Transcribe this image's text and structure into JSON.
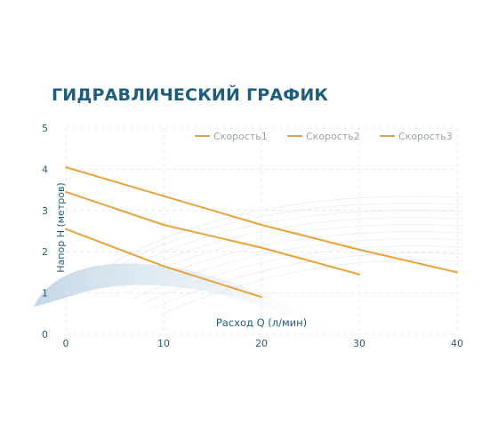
{
  "chart_data": {
    "type": "line",
    "title": "ГИДРАВЛИЧЕСКИЙ ГРАФИК",
    "xlabel": "Расход Q (л/мин)",
    "ylabel": "Напор Н (метров)",
    "xlim": [
      0,
      40
    ],
    "ylim": [
      0,
      5
    ],
    "x_ticks": [
      "0",
      "10",
      "20",
      "30",
      "40"
    ],
    "y_ticks": [
      "0",
      "1",
      "2",
      "3",
      "4",
      "5"
    ],
    "grid": "dashed",
    "legend": "top-right",
    "series": [
      {
        "name": "Скорость1",
        "color": "#e8a33a",
        "points": [
          [
            0,
            2.55
          ],
          [
            10,
            1.65
          ],
          [
            20,
            0.9
          ]
        ]
      },
      {
        "name": "Скорость2",
        "color": "#e8a33a",
        "points": [
          [
            0,
            3.45
          ],
          [
            10,
            2.65
          ],
          [
            20,
            2.1
          ],
          [
            30,
            1.45
          ]
        ]
      },
      {
        "name": "Скорость3",
        "color": "#e8a33a",
        "points": [
          [
            0,
            4.05
          ],
          [
            10,
            3.35
          ],
          [
            20,
            2.65
          ],
          [
            30,
            2.05
          ],
          [
            40,
            1.5
          ]
        ]
      }
    ]
  },
  "colors": {
    "title": "#1f5d7d",
    "axis_text": "#1f5d7d",
    "grid": "#e3e9ee",
    "line": "#e8a33a",
    "legend_text": "#9aa3aa",
    "background_wave": "#c9dbe8"
  }
}
